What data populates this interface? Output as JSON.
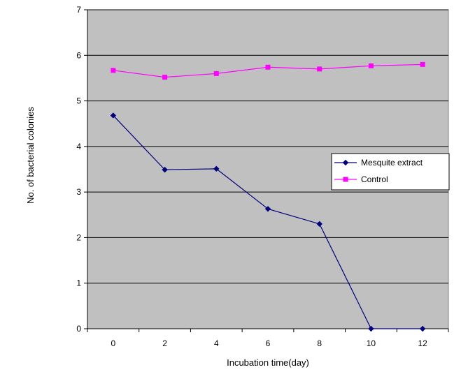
{
  "chart_data": {
    "type": "line",
    "title": "",
    "xlabel": "Incubation time(day)",
    "ylabel": "No. of bacterial colonies",
    "x": [
      0,
      2,
      4,
      6,
      8,
      10,
      12
    ],
    "xlim": [
      -1,
      13
    ],
    "ylim": [
      0,
      7
    ],
    "yticks": [
      0,
      1,
      2,
      3,
      4,
      5,
      6,
      7
    ],
    "grid": "horizontal",
    "plot_background": "#c0c0c0",
    "legend_position": "right",
    "series": [
      {
        "name": "Mesquite extract",
        "values": [
          4.68,
          3.49,
          3.51,
          2.63,
          2.3,
          0.0,
          0.0
        ],
        "color": "#000080",
        "marker": "diamond"
      },
      {
        "name": "Control",
        "values": [
          5.67,
          5.52,
          5.6,
          5.74,
          5.7,
          5.77,
          5.8
        ],
        "color": "#ff00ff",
        "marker": "square"
      }
    ]
  }
}
